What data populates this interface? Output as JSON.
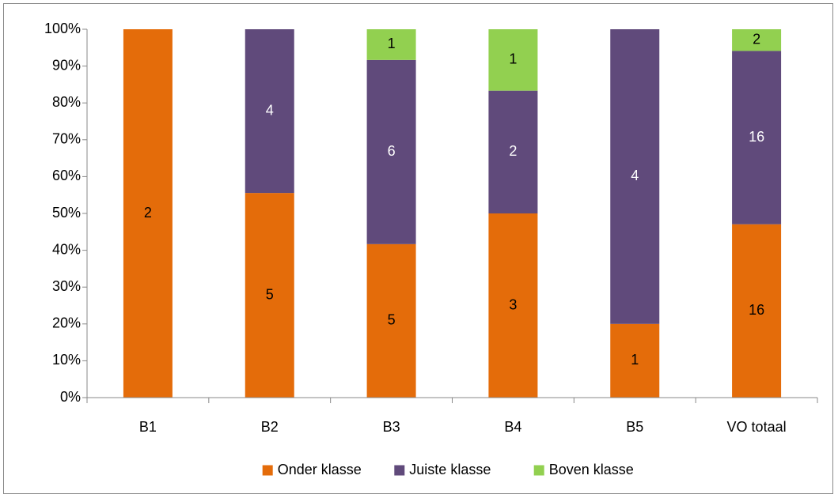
{
  "chart_data": {
    "type": "bar",
    "stacking": "percent",
    "categories": [
      "B1",
      "B2",
      "B3",
      "B4",
      "B5",
      "VO totaal"
    ],
    "series": [
      {
        "name": "Onder klasse",
        "color": "#e46c0a",
        "label_color": "#000000",
        "values": [
          2,
          5,
          5,
          3,
          1,
          16
        ]
      },
      {
        "name": "Juiste klasse",
        "color": "#604a7b",
        "label_color": "#ffffff",
        "values": [
          0,
          4,
          6,
          2,
          4,
          16
        ]
      },
      {
        "name": "Boven klasse",
        "color": "#92d050",
        "label_color": "#000000",
        "values": [
          0,
          0,
          1,
          1,
          0,
          2
        ]
      }
    ],
    "ylim": [
      0,
      100
    ],
    "yticks": [
      {
        "value": 0,
        "label": "0%"
      },
      {
        "value": 10,
        "label": "10%"
      },
      {
        "value": 20,
        "label": "20%"
      },
      {
        "value": 30,
        "label": "30%"
      },
      {
        "value": 40,
        "label": "40%"
      },
      {
        "value": 50,
        "label": "50%"
      },
      {
        "value": 60,
        "label": "60%"
      },
      {
        "value": 70,
        "label": "70%"
      },
      {
        "value": 80,
        "label": "80%"
      },
      {
        "value": 90,
        "label": "90%"
      },
      {
        "value": 100,
        "label": "100%"
      }
    ],
    "grid": false,
    "legend": "bottom"
  }
}
